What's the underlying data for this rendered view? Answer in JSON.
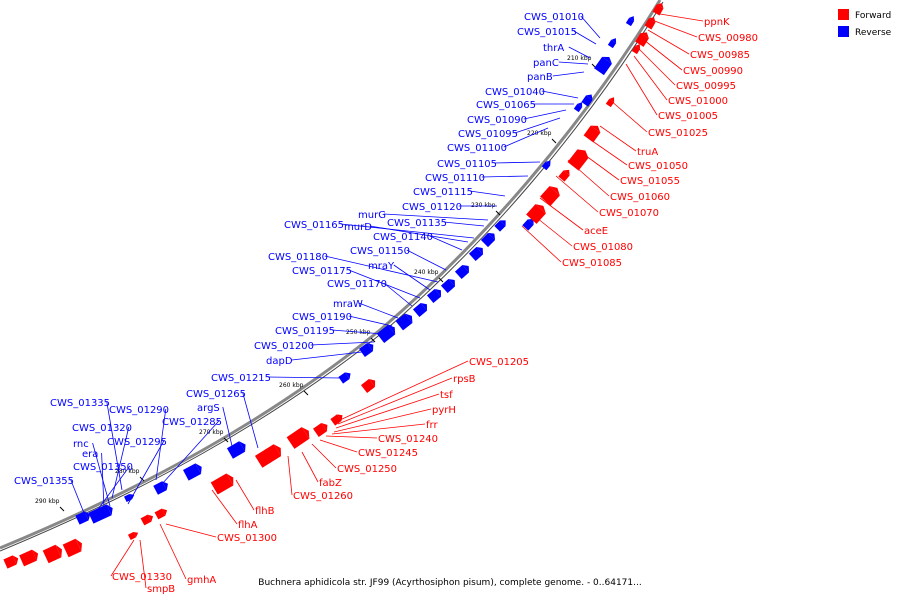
{
  "caption": "Buchnera aphidicola str. JF99 (Acyrthosiphon pisum), complete genome. - 0..64171...",
  "legend": [
    {
      "label": "Forward",
      "color": "#ff0000"
    },
    {
      "label": "Reverse",
      "color": "#0000ff"
    }
  ],
  "colors": {
    "forward": "#ff0000",
    "reverse": "#0000ff",
    "backbone": "#888888"
  },
  "ticks": [
    "210 kbp",
    "220 kbp",
    "230 kbp",
    "240 kbp",
    "250 kbp",
    "260 kbp",
    "270 kbp",
    "280 kbp",
    "290 kbp"
  ],
  "reverse_labels": [
    "CWS_01010",
    "CWS_01015",
    "thrA",
    "panC",
    "panB",
    "CWS_01040",
    "CWS_01065",
    "CWS_01090",
    "CWS_01095",
    "CWS_01100",
    "CWS_01105",
    "CWS_01110",
    "CWS_01115",
    "CWS_01120",
    "murG",
    "CWS_01135",
    "CWS_01165",
    "murD",
    "CWS_01140",
    "CWS_01150",
    "CWS_01180",
    "mraY",
    "CWS_01175",
    "CWS_01170",
    "mraW",
    "CWS_01190",
    "CWS_01195",
    "CWS_01200",
    "dapD",
    "CWS_01215",
    "CWS_01265",
    "argS",
    "CWS_01335",
    "CWS_01290",
    "CWS_01285",
    "CWS_01320",
    "rnc",
    "CWS_01295",
    "era",
    "CWS_01350",
    "CWS_01355"
  ],
  "forward_labels": [
    "ppnK",
    "CWS_00980",
    "CWS_00985",
    "CWS_00990",
    "CWS_00995",
    "CWS_01000",
    "CWS_01005",
    "CWS_01025",
    "truA",
    "CWS_01050",
    "CWS_01055",
    "CWS_01060",
    "CWS_01070",
    "aceE",
    "CWS_01080",
    "CWS_01085",
    "CWS_01205",
    "rpsB",
    "tsf",
    "pyrH",
    "frr",
    "CWS_01240",
    "CWS_01245",
    "CWS_01250",
    "fabZ",
    "CWS_01260",
    "flhB",
    "flhA",
    "CWS_01300",
    "CWS_01330",
    "smpB",
    "gmhA"
  ]
}
